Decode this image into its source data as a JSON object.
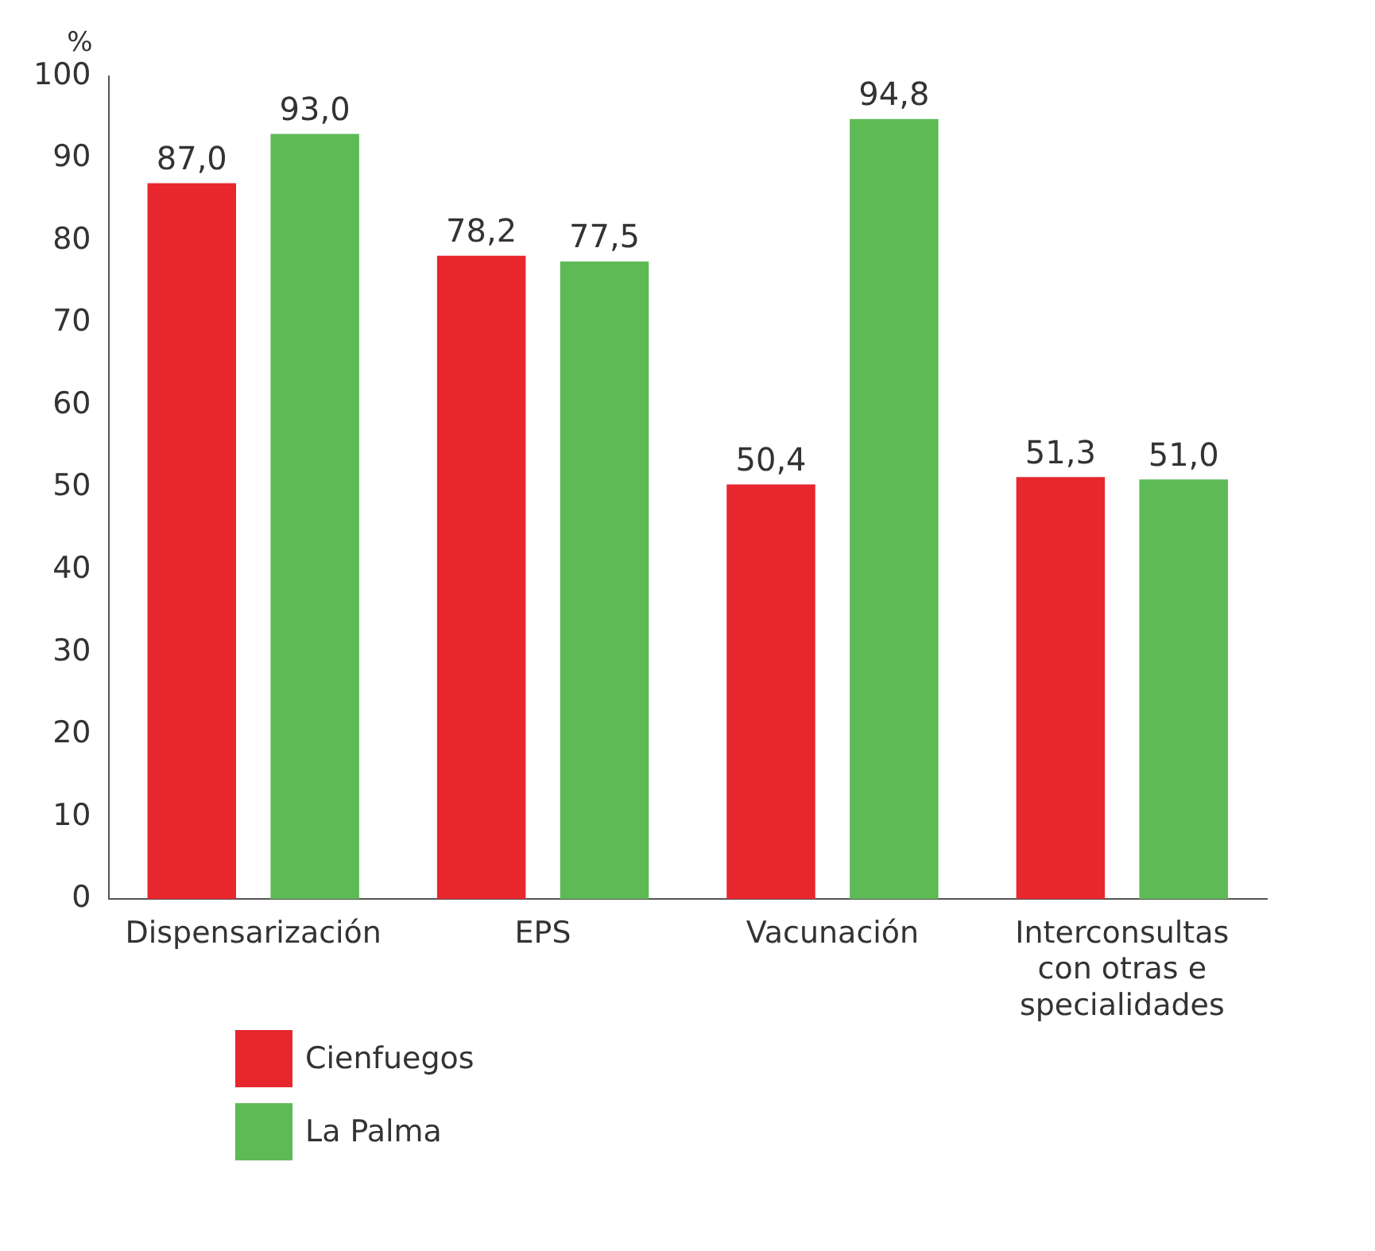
{
  "chart_data": {
    "type": "bar",
    "ylabel": "%",
    "categories": [
      "Dispensarización",
      "EPS",
      "Vacunación",
      "Interconsultas con otras e specialidades"
    ],
    "series": [
      {
        "name": "Cienfuegos",
        "color": "#e8262e",
        "values": [
          87.0,
          78.2,
          50.4,
          51.3
        ],
        "value_labels": [
          "87,0",
          "78,2",
          "50,4",
          "51,3"
        ]
      },
      {
        "name": "La Palma",
        "color": "#5dba55",
        "values": [
          93.0,
          77.5,
          94.8,
          51.0
        ],
        "value_labels": [
          "93,0",
          "77,5",
          "94,8",
          "51,0"
        ]
      }
    ],
    "ylim": [
      0,
      100
    ],
    "yticks": [
      0,
      10,
      20,
      30,
      40,
      50,
      60,
      70,
      80,
      90,
      100
    ],
    "grid": false,
    "legend": "bottom left"
  }
}
